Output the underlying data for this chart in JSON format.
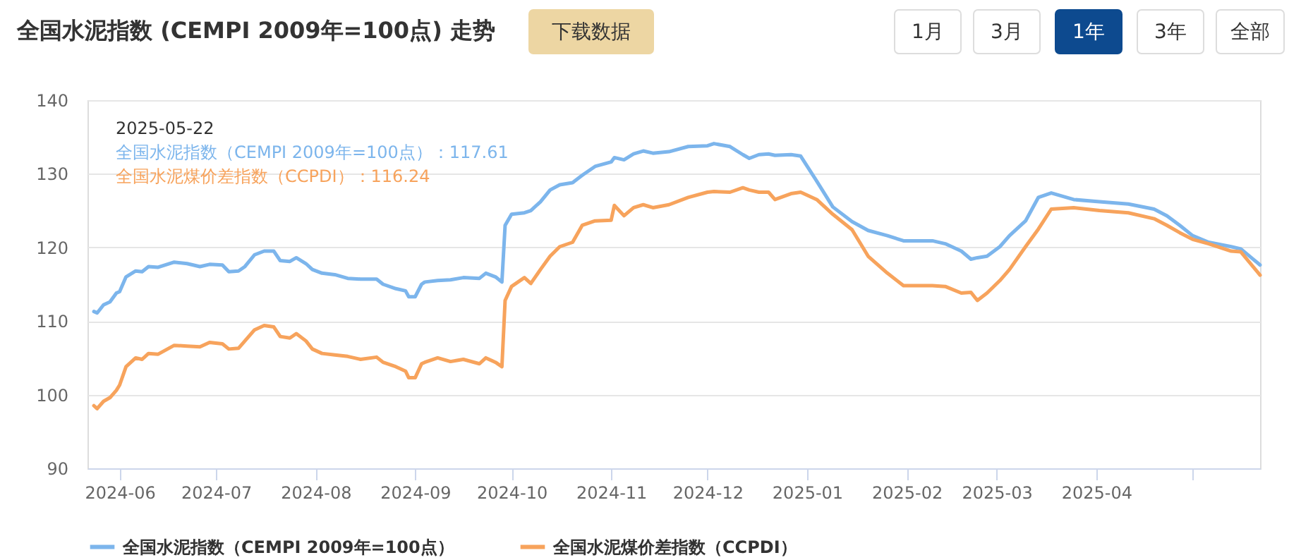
{
  "chart_data": {
    "type": "line",
    "title": "全国水泥指数 (CEMPI 2009年=100点) 走势",
    "x": [
      "2024-05-24",
      "2024-05-25",
      "2024-05-27",
      "2024-05-29",
      "2024-05-31",
      "2024-06-01",
      "2024-06-03",
      "2024-06-06",
      "2024-06-08",
      "2024-06-10",
      "2024-06-13",
      "2024-06-18",
      "2024-06-22",
      "2024-06-26",
      "2024-06-29",
      "2024-07-03",
      "2024-07-05",
      "2024-07-08",
      "2024-07-10",
      "2024-07-13",
      "2024-07-16",
      "2024-07-19",
      "2024-07-21",
      "2024-07-24",
      "2024-07-26",
      "2024-07-29",
      "2024-07-31",
      "2024-08-03",
      "2024-08-07",
      "2024-08-11",
      "2024-08-15",
      "2024-08-20",
      "2024-08-22",
      "2024-08-26",
      "2024-08-29",
      "2024-08-30",
      "2024-09-01",
      "2024-09-03",
      "2024-09-04",
      "2024-09-08",
      "2024-09-12",
      "2024-09-16",
      "2024-09-21",
      "2024-09-23",
      "2024-09-26",
      "2024-09-28",
      "2024-09-29",
      "2024-10-01",
      "2024-10-05",
      "2024-10-07",
      "2024-10-10",
      "2024-10-13",
      "2024-10-16",
      "2024-10-20",
      "2024-10-23",
      "2024-10-27",
      "2024-11-01",
      "2024-11-02",
      "2024-11-05",
      "2024-11-08",
      "2024-11-11",
      "2024-11-14",
      "2024-11-19",
      "2024-11-25",
      "2024-12-01",
      "2024-12-03",
      "2024-12-08",
      "2024-12-12",
      "2024-12-14",
      "2024-12-17",
      "2024-12-20",
      "2024-12-22",
      "2024-12-27",
      "2024-12-30",
      "2025-01-04",
      "2025-01-09",
      "2025-01-15",
      "2025-01-20",
      "2025-01-26",
      "2025-01-31",
      "2025-02-09",
      "2025-02-13",
      "2025-02-18",
      "2025-02-21",
      "2025-02-23",
      "2025-02-26",
      "2025-03-02",
      "2025-03-05",
      "2025-03-10",
      "2025-03-14",
      "2025-03-18",
      "2025-03-25",
      "2025-04-02",
      "2025-04-11",
      "2025-04-19",
      "2025-04-23",
      "2025-04-27",
      "2025-05-01",
      "2025-05-06",
      "2025-05-13",
      "2025-05-16",
      "2025-05-22"
    ],
    "series": [
      {
        "name": "全国水泥指数（CEMPI 2009年=100点）",
        "color": "#7cb5ec",
        "values": [
          111.3,
          111.1,
          112.2,
          112.6,
          113.8,
          114.0,
          116.0,
          116.8,
          116.7,
          117.4,
          117.3,
          118.0,
          117.8,
          117.4,
          117.7,
          117.6,
          116.7,
          116.8,
          117.4,
          119.0,
          119.5,
          119.5,
          118.2,
          118.1,
          118.6,
          117.8,
          117.0,
          116.5,
          116.3,
          115.8,
          115.7,
          115.7,
          115.0,
          114.4,
          114.1,
          113.3,
          113.3,
          115.0,
          115.3,
          115.5,
          115.6,
          115.9,
          115.8,
          116.5,
          116.0,
          115.3,
          123.0,
          124.5,
          124.7,
          125.0,
          126.2,
          127.8,
          128.5,
          128.8,
          129.8,
          131.0,
          131.6,
          132.2,
          131.9,
          132.7,
          133.1,
          132.8,
          133.0,
          133.7,
          133.8,
          134.1,
          133.7,
          132.6,
          132.1,
          132.6,
          132.7,
          132.5,
          132.6,
          132.4,
          129.0,
          125.5,
          123.5,
          122.3,
          121.6,
          120.9,
          120.9,
          120.5,
          119.5,
          118.4,
          118.6,
          118.8,
          120.1,
          121.6,
          123.6,
          126.8,
          127.4,
          126.5,
          126.2,
          125.9,
          125.2,
          124.3,
          123.0,
          121.6,
          120.7,
          120.1,
          119.8,
          117.61
        ]
      },
      {
        "name": "全国水泥煤价差指数（CCPDI）",
        "color": "#f7a35c",
        "values": [
          98.5,
          98.1,
          99.1,
          99.6,
          100.6,
          101.3,
          103.8,
          105.0,
          104.8,
          105.6,
          105.5,
          106.7,
          106.6,
          106.5,
          107.1,
          106.9,
          106.2,
          106.3,
          107.3,
          108.8,
          109.4,
          109.2,
          107.9,
          107.7,
          108.3,
          107.3,
          106.2,
          105.6,
          105.4,
          105.2,
          104.8,
          105.1,
          104.4,
          103.8,
          103.2,
          102.3,
          102.3,
          104.2,
          104.4,
          105.0,
          104.5,
          104.8,
          104.2,
          105.0,
          104.4,
          103.8,
          112.8,
          114.7,
          115.9,
          115.1,
          117.0,
          118.8,
          120.1,
          120.7,
          123.0,
          123.6,
          123.7,
          125.7,
          124.3,
          125.4,
          125.8,
          125.4,
          125.8,
          126.8,
          127.5,
          127.6,
          127.5,
          128.1,
          127.8,
          127.5,
          127.5,
          126.5,
          127.3,
          127.5,
          126.5,
          124.5,
          122.4,
          118.8,
          116.5,
          114.8,
          114.8,
          114.7,
          113.8,
          113.9,
          112.8,
          113.8,
          115.5,
          117.0,
          120.1,
          122.5,
          125.2,
          125.4,
          125.0,
          124.7,
          123.9,
          123.0,
          122.0,
          121.1,
          120.5,
          119.5,
          119.4,
          116.24
        ]
      }
    ],
    "xlim": [
      "2024-05-22",
      "2025-05-22"
    ],
    "xticks": [
      {
        "value": "2024-06",
        "label": "2024-06"
      },
      {
        "value": "2024-07",
        "label": "2024-07"
      },
      {
        "value": "2024-08",
        "label": "2024-08"
      },
      {
        "value": "2024-09",
        "label": "2024-09"
      },
      {
        "value": "2024-10",
        "label": "2024-10"
      },
      {
        "value": "2024-11",
        "label": "2024-11"
      },
      {
        "value": "2024-12",
        "label": "2024-12"
      },
      {
        "value": "2025-01",
        "label": "2025-01"
      },
      {
        "value": "2025-02",
        "label": "2025-02"
      },
      {
        "value": "2025-03",
        "label": "2025-03"
      },
      {
        "value": "2025-04",
        "label": "2025-04"
      },
      {
        "value": "2025-05",
        "label": null
      }
    ],
    "ylim": [
      90,
      140
    ],
    "yticks": [
      90,
      100,
      110,
      120,
      130,
      140
    ],
    "grid": "y",
    "legend": "bottom",
    "marker": "none",
    "line_style": "solid",
    "annotations": [
      "下载数据",
      "1月",
      "3月",
      "1年",
      "3年",
      "全部",
      "2025-05-22",
      "全国水泥指数（CEMPI 2009年=100点）：117.61",
      "全国水泥煤价差指数（CCPDI）：116.24"
    ]
  }
}
